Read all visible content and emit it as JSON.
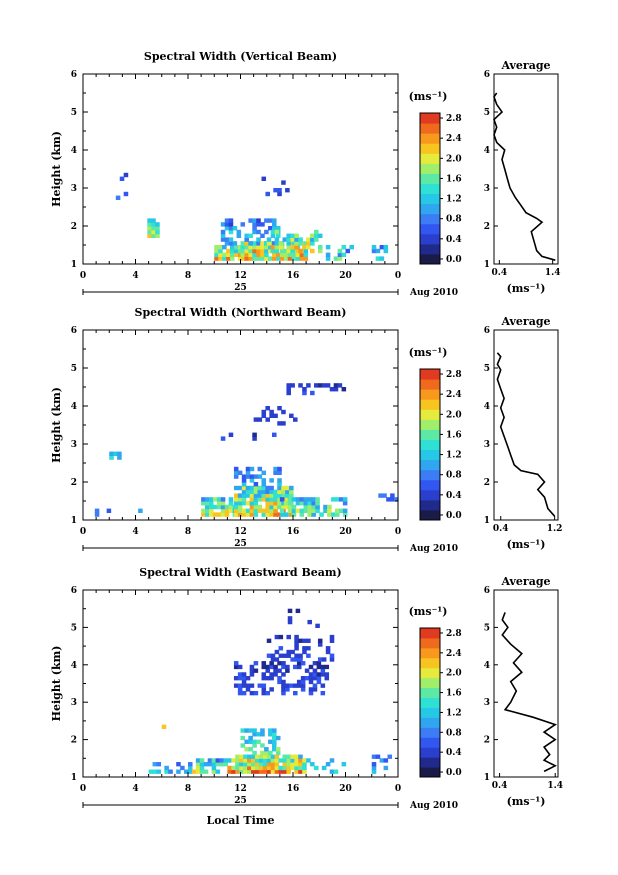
{
  "chart_data": [
    {
      "type": "heatmap",
      "title": "Spectral Width (Vertical Beam)",
      "ylabel": "Height (km)",
      "xlim": [
        0,
        24
      ],
      "ylim": [
        1,
        6
      ],
      "xticks": [
        "0",
        "4",
        "8",
        "12",
        "16",
        "20",
        "0"
      ],
      "yticks": [
        "1",
        "2",
        "3",
        "4",
        "5",
        "6"
      ],
      "day_label": "25",
      "month_label": "Aug 2010",
      "colorbar": {
        "unit": "(ms⁻¹)",
        "ticks": [
          "0.0",
          "0.4",
          "0.8",
          "1.2",
          "1.6",
          "2.0",
          "2.4",
          "2.8"
        ],
        "min": 0.0,
        "max": 3.0
      },
      "average": {
        "title": "Average",
        "xlabel": "(ms⁻¹)",
        "xticks": [
          "0.4",
          "1.4"
        ],
        "xlim": [
          0.3,
          1.5
        ],
        "profile": [
          [
            1.45,
            1.1
          ],
          [
            1.2,
            1.2
          ],
          [
            1.1,
            1.35
          ],
          [
            1.05,
            1.6
          ],
          [
            1.0,
            1.85
          ],
          [
            1.2,
            2.1
          ],
          [
            1.1,
            2.2
          ],
          [
            0.9,
            2.35
          ],
          [
            0.8,
            2.55
          ],
          [
            0.7,
            2.75
          ],
          [
            0.6,
            3.0
          ],
          [
            0.55,
            3.25
          ],
          [
            0.5,
            3.5
          ],
          [
            0.45,
            3.75
          ],
          [
            0.5,
            4.0
          ],
          [
            0.35,
            4.2
          ],
          [
            0.3,
            4.4
          ],
          [
            0.35,
            4.6
          ],
          [
            0.3,
            4.8
          ],
          [
            0.45,
            5.0
          ],
          [
            0.35,
            5.2
          ],
          [
            0.3,
            5.4
          ],
          [
            0.35,
            5.5
          ]
        ]
      }
    },
    {
      "type": "heatmap",
      "title": "Spectral Width (Northward Beam)",
      "ylabel": "Height (km)",
      "xlim": [
        0,
        24
      ],
      "ylim": [
        1,
        6
      ],
      "xticks": [
        "0",
        "4",
        "8",
        "12",
        "16",
        "20",
        "0"
      ],
      "yticks": [
        "1",
        "2",
        "3",
        "4",
        "5",
        "6"
      ],
      "day_label": "25",
      "month_label": "Aug 2010",
      "colorbar": {
        "unit": "(ms⁻¹)",
        "ticks": [
          "0.0",
          "0.4",
          "0.8",
          "1.2",
          "1.6",
          "2.0",
          "2.4",
          "2.8"
        ],
        "min": 0.0,
        "max": 3.0
      },
      "average": {
        "title": "Average",
        "xlabel": "(ms⁻¹)",
        "xticks": [
          "0.4",
          "1.2"
        ],
        "xlim": [
          0.3,
          1.25
        ],
        "profile": [
          [
            1.2,
            1.1
          ],
          [
            1.1,
            1.3
          ],
          [
            1.05,
            1.6
          ],
          [
            0.95,
            1.8
          ],
          [
            1.05,
            2.0
          ],
          [
            0.95,
            2.2
          ],
          [
            0.7,
            2.3
          ],
          [
            0.6,
            2.45
          ],
          [
            0.55,
            2.7
          ],
          [
            0.5,
            2.95
          ],
          [
            0.45,
            3.2
          ],
          [
            0.4,
            3.45
          ],
          [
            0.45,
            3.7
          ],
          [
            0.4,
            3.95
          ],
          [
            0.45,
            4.2
          ],
          [
            0.4,
            4.45
          ],
          [
            0.35,
            4.7
          ],
          [
            0.4,
            4.95
          ],
          [
            0.35,
            5.1
          ],
          [
            0.4,
            5.3
          ],
          [
            0.35,
            5.4
          ]
        ]
      }
    },
    {
      "type": "heatmap",
      "title": "Spectral Width (Eastward Beam)",
      "ylabel": "Height (km)",
      "xlabel": "Local Time",
      "xlim": [
        0,
        24
      ],
      "ylim": [
        1,
        6
      ],
      "xticks": [
        "0",
        "4",
        "8",
        "12",
        "16",
        "20",
        "0"
      ],
      "yticks": [
        "1",
        "2",
        "3",
        "4",
        "5",
        "6"
      ],
      "day_label": "25",
      "month_label": "Aug 2010",
      "colorbar": {
        "unit": "(ms⁻¹)",
        "ticks": [
          "0.0",
          "0.4",
          "0.8",
          "1.2",
          "1.6",
          "2.0",
          "2.4",
          "2.8"
        ],
        "min": 0.0,
        "max": 3.0
      },
      "average": {
        "title": "Average",
        "xlabel": "(ms⁻¹)",
        "xticks": [
          "0.4",
          "1.4"
        ],
        "xlim": [
          0.3,
          1.45
        ],
        "profile": [
          [
            1.2,
            1.15
          ],
          [
            1.4,
            1.3
          ],
          [
            1.2,
            1.45
          ],
          [
            1.3,
            1.6
          ],
          [
            1.2,
            1.8
          ],
          [
            1.4,
            2.0
          ],
          [
            1.2,
            2.2
          ],
          [
            1.4,
            2.4
          ],
          [
            1.0,
            2.6
          ],
          [
            0.5,
            2.8
          ],
          [
            0.6,
            3.0
          ],
          [
            0.7,
            3.3
          ],
          [
            0.6,
            3.55
          ],
          [
            0.8,
            3.8
          ],
          [
            0.65,
            4.05
          ],
          [
            0.8,
            4.3
          ],
          [
            0.6,
            4.55
          ],
          [
            0.45,
            4.8
          ],
          [
            0.55,
            5.0
          ],
          [
            0.45,
            5.2
          ],
          [
            0.5,
            5.4
          ]
        ]
      }
    }
  ],
  "colors": {
    "cmap": [
      "#1b1b4a",
      "#202a8c",
      "#2a3fcd",
      "#3257f0",
      "#3c7df5",
      "#2fa6ef",
      "#26c8e6",
      "#2fe0d4",
      "#5de8a6",
      "#a0ee6a",
      "#e6ea3c",
      "#f8c420",
      "#f8981c",
      "#f06a1e",
      "#e03a20"
    ],
    "line": "#000000"
  }
}
